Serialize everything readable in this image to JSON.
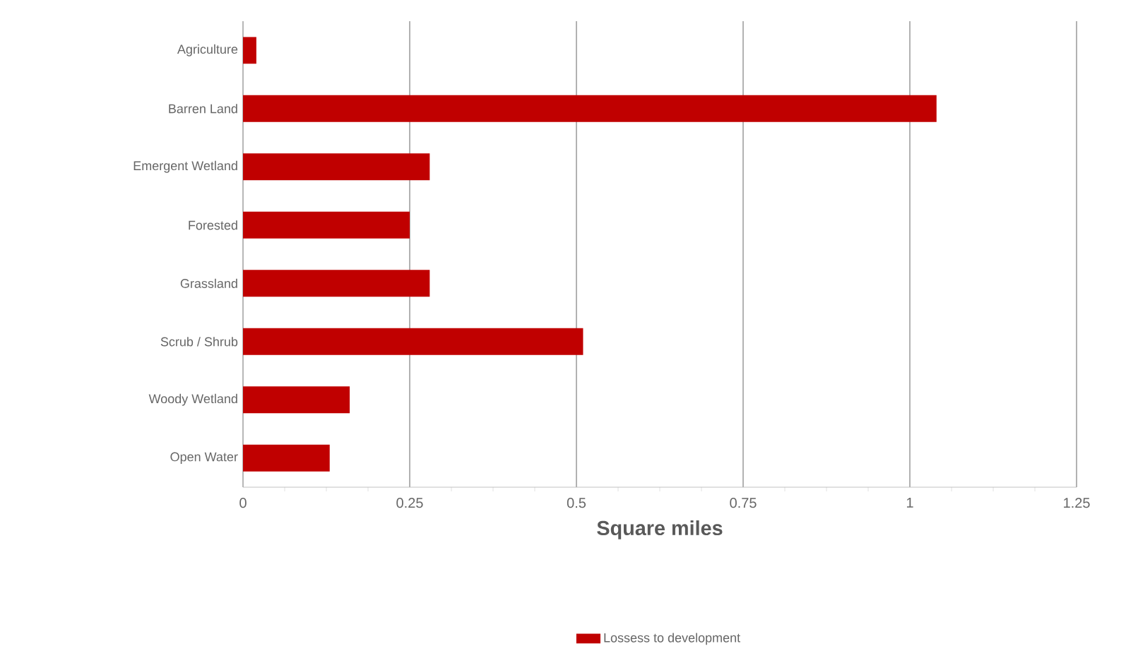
{
  "chart_data": {
    "type": "bar",
    "orientation": "horizontal",
    "xlabel": "Square miles",
    "categories": [
      "Agriculture",
      "Barren Land",
      "Emergent Wetland",
      "Forested",
      "Grassland",
      "Scrub / Shrub",
      "Woody Wetland",
      "Open Water"
    ],
    "series": [
      {
        "name": "Lossess to development",
        "color": "#c00000",
        "values": [
          0.02,
          1.04,
          0.28,
          0.25,
          0.28,
          0.51,
          0.16,
          0.13
        ]
      }
    ],
    "xlim": [
      0,
      1.25
    ],
    "xticks": [
      0,
      0.25,
      0.5,
      0.75,
      1,
      1.25
    ],
    "grid": "x",
    "legend": "bottom"
  }
}
